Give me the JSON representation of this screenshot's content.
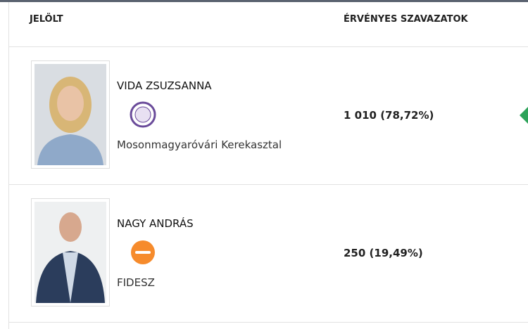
{
  "table": {
    "header": [
      "JELÖLT",
      "ÉRVÉNYES SZAVAZATOK"
    ],
    "rows": [
      {
        "name": "VIDA ZSUZSANNA",
        "party": "Mosonmagyaróvári Kerekasztal",
        "votes": "1 010 (78,72%)"
      },
      {
        "name": "NAGY ANDRÁS",
        "party": "FIDESZ",
        "votes": "250 (19,49%)"
      }
    ]
  }
}
